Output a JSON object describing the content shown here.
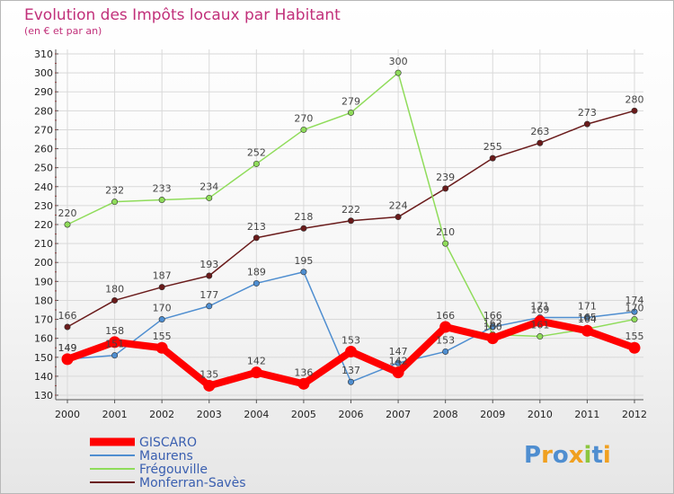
{
  "chart_data": {
    "type": "line",
    "title": "Evolution des Impôts locaux par Habitant",
    "subtitle": "(en € et par an)",
    "xlabel": "",
    "ylabel": "",
    "ylim": [
      130,
      310
    ],
    "yticks": [
      130,
      140,
      150,
      160,
      170,
      180,
      190,
      200,
      210,
      220,
      230,
      240,
      250,
      260,
      270,
      280,
      290,
      300,
      310
    ],
    "categories": [
      "2000",
      "2001",
      "2002",
      "2003",
      "2004",
      "2005",
      "2006",
      "2007",
      "2008",
      "2009",
      "2010",
      "2011",
      "2012"
    ],
    "series": [
      {
        "name": "GISCARO",
        "color": "#ff0000",
        "values": [
          149,
          158,
          155,
          135,
          142,
          136,
          153,
          142,
          166,
          160,
          169,
          164,
          155
        ]
      },
      {
        "name": "Maurens",
        "color": "#4f8ed0",
        "values": [
          149,
          151,
          170,
          177,
          189,
          195,
          137,
          147,
          153,
          166,
          171,
          171,
          174
        ]
      },
      {
        "name": "Frégouville",
        "color": "#8fdc5a",
        "values": [
          220,
          232,
          233,
          234,
          252,
          270,
          279,
          300,
          210,
          162,
          161,
          165,
          170
        ]
      },
      {
        "name": "Monferran-Savès",
        "color": "#6a1b1b",
        "values": [
          166,
          180,
          187,
          193,
          213,
          218,
          222,
          224,
          239,
          255,
          263,
          273,
          280
        ]
      }
    ]
  },
  "logo": {
    "text": "Proxiti"
  }
}
